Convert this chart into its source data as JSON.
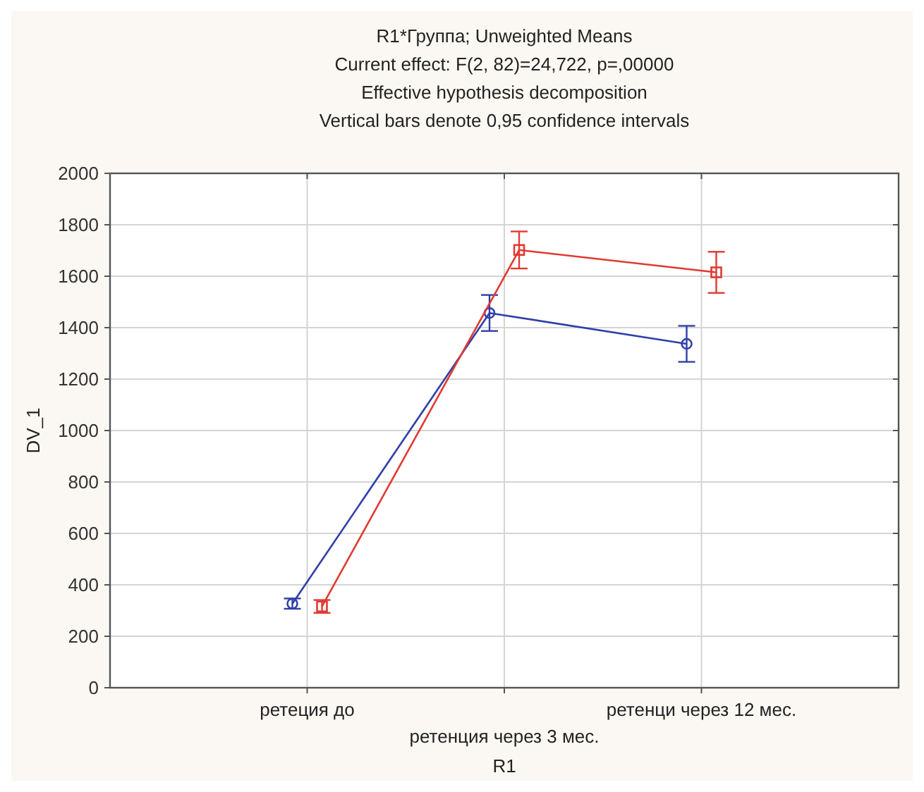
{
  "chart_data": {
    "type": "line",
    "title": "R1*Группа; Unweighted Means",
    "subtitle": "Current effect: F(2, 82)=24,722, p=,00000\nEffective hypothesis decomposition\nVertical bars denote 0,95 confidence intervals",
    "xlabel": "R1",
    "ylabel": "DV_1",
    "categories": [
      "ретеция до",
      "ретенция через 3 мес.",
      "ретенци через 12 мес."
    ],
    "ylim": [
      0,
      2000
    ],
    "yticks": [
      0,
      200,
      400,
      600,
      800,
      1000,
      1200,
      1400,
      1600,
      1800,
      2000
    ],
    "grid": true,
    "series": [
      {
        "color": "#3040a8",
        "marker": "circle",
        "values": [
          327,
          1457,
          1337
        ],
        "errors": [
          20,
          70,
          70
        ]
      },
      {
        "color": "#e03a32",
        "marker": "square",
        "values": [
          316,
          1702,
          1615
        ],
        "errors": [
          25,
          72,
          80
        ]
      }
    ]
  }
}
